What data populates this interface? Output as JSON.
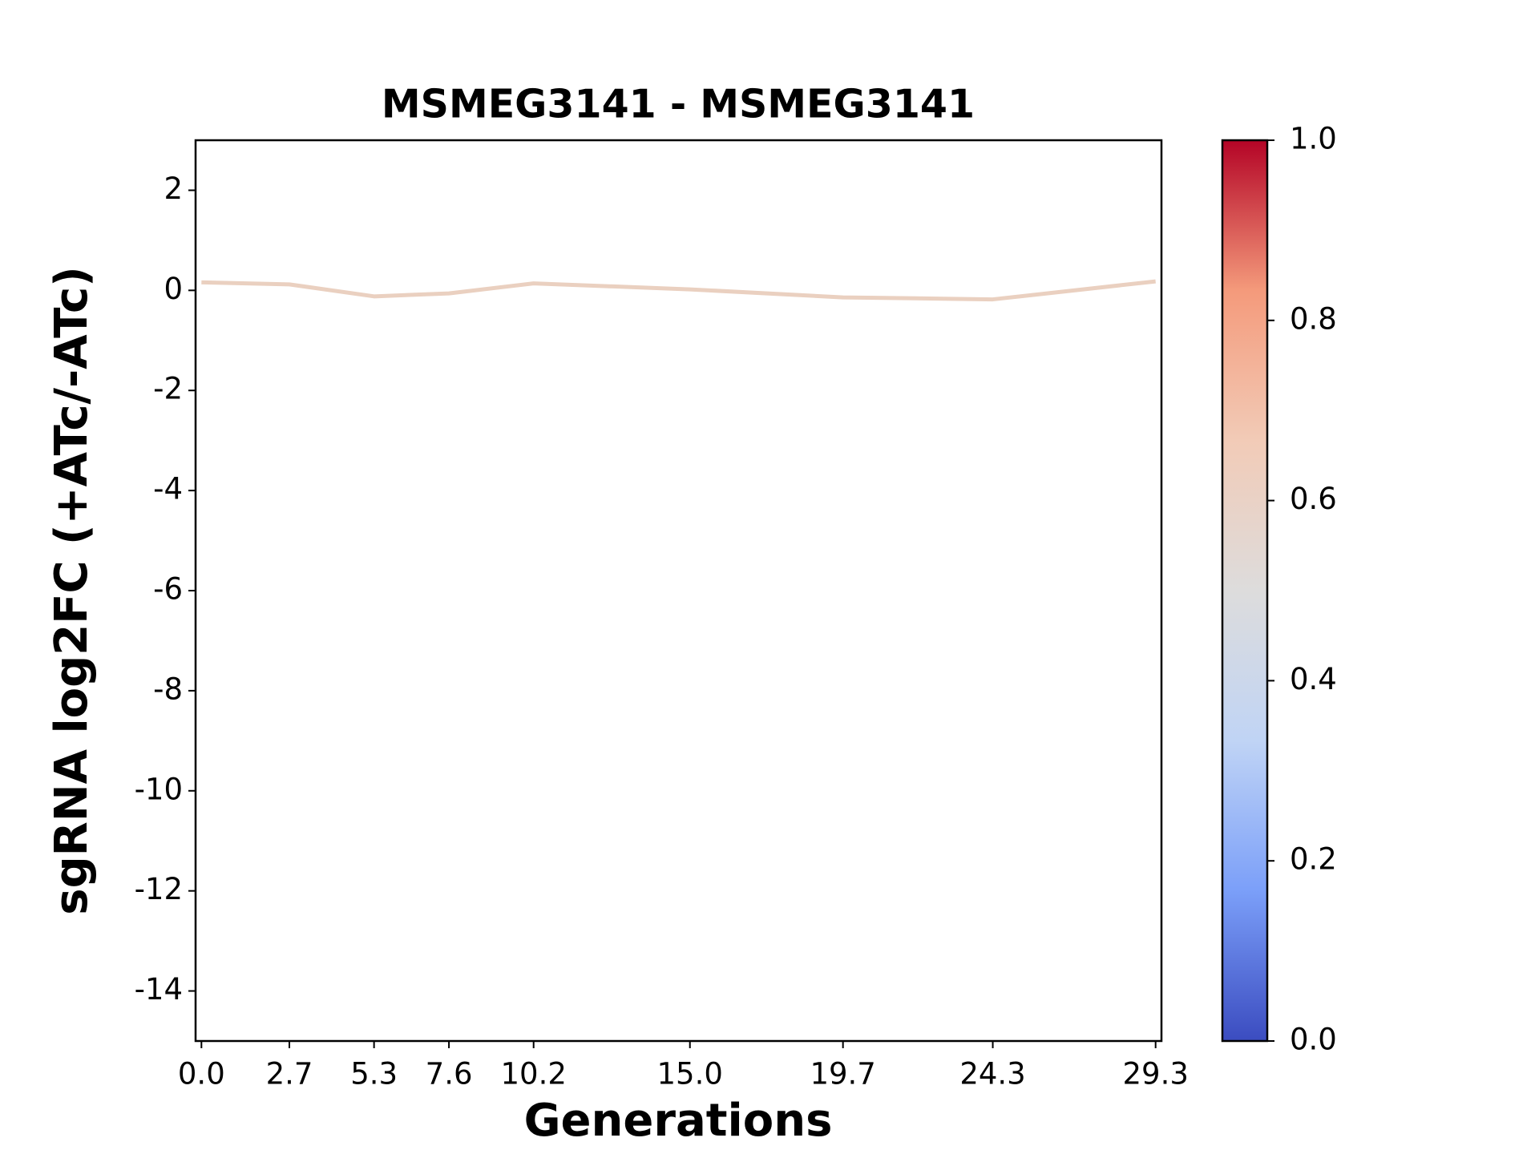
{
  "chart_data": {
    "type": "line",
    "title": "MSMEG3141 - MSMEG3141",
    "xlabel": "Generations",
    "ylabel": "sgRNA log2FC (+ATc/-ATc)",
    "x": [
      0,
      2.7,
      5.3,
      7.6,
      10.2,
      15.0,
      19.7,
      24.3,
      29.3
    ],
    "series": [
      {
        "color": "#ead0c0",
        "values": [
          0.16,
          0.12,
          -0.12,
          -0.06,
          0.14,
          0.02,
          -0.14,
          -0.18,
          0.18
        ]
      }
    ],
    "xlim": [
      -0.18,
      29.48
    ],
    "xticks": [
      {
        "value": 0,
        "label": "0.0"
      },
      2.7,
      5.3,
      7.6,
      10.2,
      {
        "value": 15,
        "label": "15.0"
      },
      19.7,
      24.3,
      29.3
    ],
    "ylim": [
      -15,
      3
    ],
    "yticks": [
      2,
      0,
      -2,
      -4,
      -6,
      -8,
      -10,
      -12,
      -14
    ],
    "colorbar": {
      "lim": [
        0,
        1
      ],
      "ticks": [
        {
          "value": 0,
          "label": "0.0"
        },
        0.2,
        0.4,
        0.6,
        0.8,
        {
          "value": 1,
          "label": "1.0"
        }
      ],
      "colors": [
        "#3b4cc0",
        "#7b9ff9",
        "#c0d4f5",
        "#dddcdc",
        "#f2cbb7",
        "#f49a7b",
        "#b40426"
      ]
    }
  }
}
